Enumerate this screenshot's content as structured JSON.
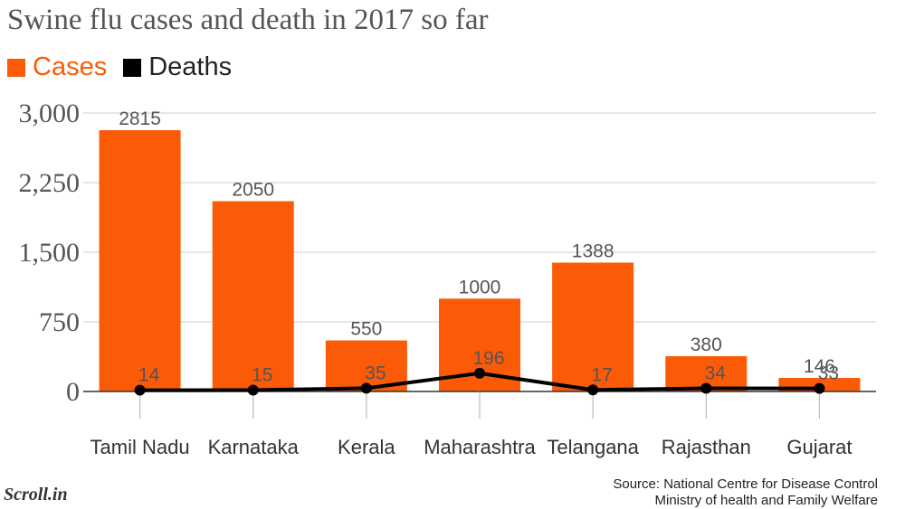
{
  "chart_data": {
    "type": "bar",
    "title": "Swine flu cases and death in 2017 so far",
    "categories": [
      "Tamil Nadu",
      "Karnataka",
      "Kerala",
      "Maharashtra",
      "Telangana",
      "Rajasthan",
      "Gujarat"
    ],
    "series": [
      {
        "name": "Cases",
        "type": "bar",
        "color": "#fb5a07",
        "values": [
          2815,
          2050,
          550,
          1000,
          1388,
          380,
          146
        ]
      },
      {
        "name": "Deaths",
        "type": "line",
        "color": "#000000",
        "values": [
          14,
          15,
          35,
          196,
          17,
          34,
          33
        ]
      }
    ],
    "ylim": [
      0,
      3000
    ],
    "yticks": [
      0,
      750,
      1500,
      2250,
      3000
    ],
    "ytick_labels": [
      "0",
      "750",
      "1,500",
      "2,250",
      "3,000"
    ],
    "grid": true,
    "legend_position": "top-left"
  },
  "legend": {
    "cases_label": "Cases",
    "deaths_label": "Deaths"
  },
  "source": {
    "line1": "Source: National Centre for Disease Control",
    "line2": "Ministry of health and Family Welfare"
  },
  "logo": "Scroll.in"
}
